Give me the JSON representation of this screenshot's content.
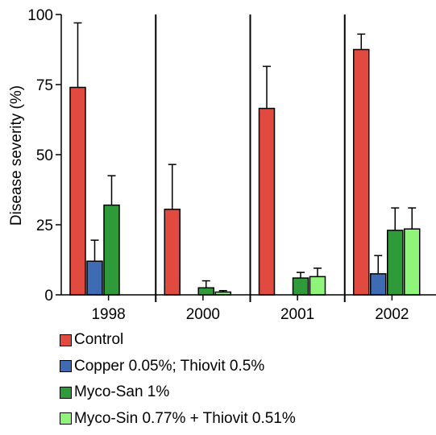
{
  "chart_data": {
    "type": "bar",
    "ylabel": "Disease severity (%)",
    "xlabel": "",
    "ylim": [
      0,
      100
    ],
    "yticks": [
      0,
      25,
      50,
      75,
      100
    ],
    "categories": [
      "1998",
      "2000",
      "2001",
      "2002"
    ],
    "error_bars": "upper",
    "legend_position": "bottom",
    "series": [
      {
        "name": "Control",
        "color": "#e04a3f",
        "values": [
          74,
          30.5,
          66.5,
          87.5
        ],
        "errors": [
          23,
          16,
          15,
          5.5
        ]
      },
      {
        "name": "Copper 0.05%; Thiovit 0.5%",
        "color": "#3f6bb5",
        "values": [
          12,
          null,
          null,
          7.5
        ],
        "errors": [
          7.5,
          null,
          null,
          6.5
        ]
      },
      {
        "name": "Myco-San 1%",
        "color": "#2e9a3a",
        "values": [
          32,
          2.5,
          6,
          23
        ],
        "errors": [
          10.5,
          2.5,
          2,
          8
        ]
      },
      {
        "name": "Myco-Sin 0.77% + Thiovit 0.51%",
        "color": "#8ff57a",
        "values": [
          null,
          1,
          6.5,
          23.5
        ],
        "errors": [
          null,
          0.5,
          3,
          7.5
        ]
      }
    ]
  }
}
